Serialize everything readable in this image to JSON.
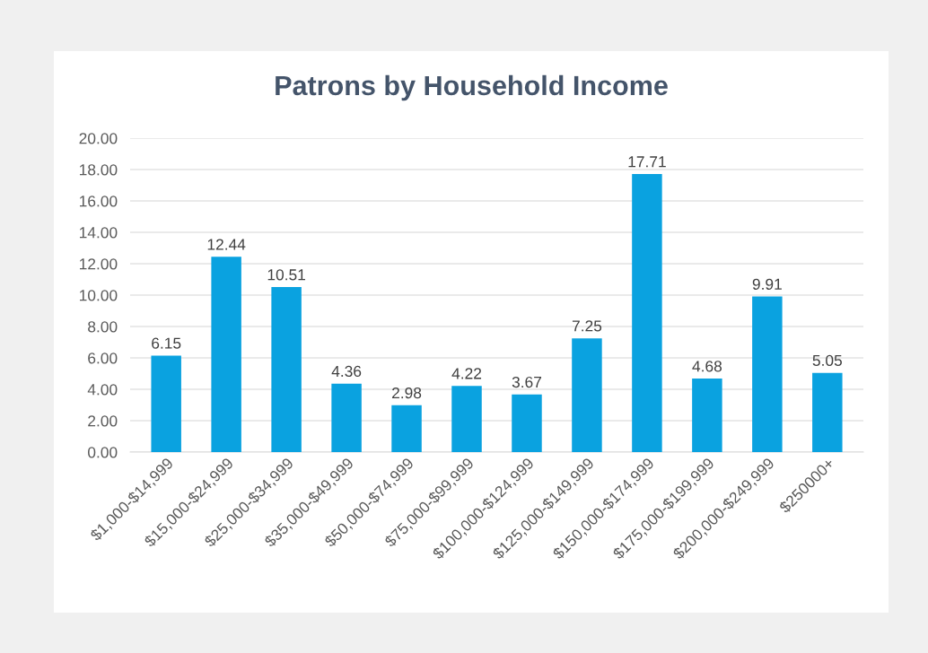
{
  "chart_data": {
    "type": "bar",
    "title": "Patrons by Household Income",
    "categories": [
      "$1,000-$14,999",
      "$15,000-$24,999",
      "$25,000-$34,999",
      "$35,000-$49,999",
      "$50,000-$74,999",
      "$75,000-$99,999",
      "$100,000-$124,999",
      "$125,000-$149,999",
      "$150,000-$174,999",
      "$175,000-$199,999",
      "$200,000-$249,999",
      "$250000+"
    ],
    "values": [
      6.15,
      12.44,
      10.51,
      4.36,
      2.98,
      4.22,
      3.67,
      7.25,
      17.71,
      4.68,
      9.91,
      5.05
    ],
    "color": "#0aa2e0",
    "ylim": [
      0,
      20
    ],
    "yticks": [
      {
        "value": 0,
        "label": "0.00"
      },
      {
        "value": 2,
        "label": "2.00"
      },
      {
        "value": 4,
        "label": "4.00"
      },
      {
        "value": 6,
        "label": "6.00"
      },
      {
        "value": 8,
        "label": "8.00"
      },
      {
        "value": 10,
        "label": "10.00"
      },
      {
        "value": 12,
        "label": "12.00"
      },
      {
        "value": 14,
        "label": "14.00"
      },
      {
        "value": 16,
        "label": "16.00"
      },
      {
        "value": 18,
        "label": "18.00"
      },
      {
        "value": 20,
        "label": "20.00"
      }
    ],
    "grid": "y",
    "data_labels": true,
    "legend": false
  }
}
